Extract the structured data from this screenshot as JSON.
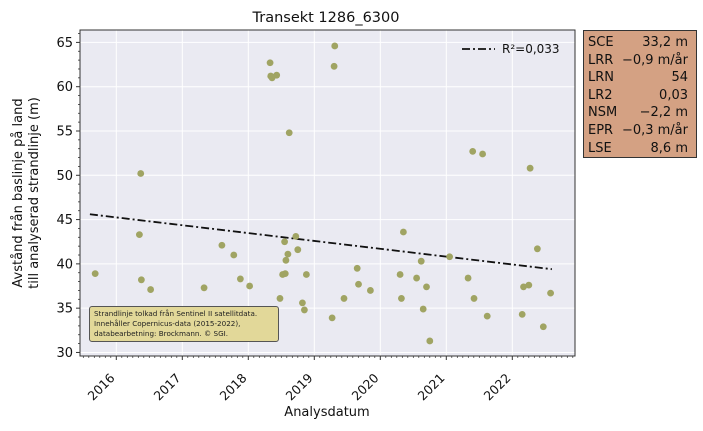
{
  "chart_data": {
    "type": "scatter",
    "title": "Transekt 1286_6300",
    "xlabel": "Analysdatum",
    "ylabel_lines": [
      "Avstånd från baslinje på land",
      "till analyserad strandlinje (m)"
    ],
    "xlim": [
      2015.45,
      2022.95
    ],
    "ylim": [
      29.6,
      66.4
    ],
    "x_ticks": [
      2016,
      2017,
      2018,
      2019,
      2020,
      2021,
      2022
    ],
    "x_tick_labels": [
      "2016",
      "2017",
      "2018",
      "2019",
      "2020",
      "2021",
      "2022"
    ],
    "y_ticks": [
      30,
      35,
      40,
      45,
      50,
      55,
      60,
      65
    ],
    "y_tick_labels": [
      "30",
      "35",
      "40",
      "45",
      "50",
      "55",
      "60",
      "65"
    ],
    "grid": true,
    "colors": {
      "points": "#a0a463",
      "trend": "#111111",
      "plot_bg": "#eaeaf2"
    },
    "series": [
      {
        "values": [
          [
            2015.68,
            38.9
          ],
          [
            2016.35,
            43.3
          ],
          [
            2016.37,
            50.2
          ],
          [
            2016.38,
            38.2
          ],
          [
            2016.52,
            37.1
          ],
          [
            2017.33,
            37.3
          ],
          [
            2017.6,
            42.1
          ],
          [
            2017.78,
            41.0
          ],
          [
            2017.88,
            38.3
          ],
          [
            2018.02,
            37.5
          ],
          [
            2018.33,
            62.7
          ],
          [
            2018.34,
            61.2
          ],
          [
            2018.36,
            61.0
          ],
          [
            2018.43,
            61.3
          ],
          [
            2018.48,
            36.1
          ],
          [
            2018.52,
            38.8
          ],
          [
            2018.55,
            42.5
          ],
          [
            2018.56,
            38.9
          ],
          [
            2018.57,
            40.4
          ],
          [
            2018.6,
            41.1
          ],
          [
            2018.62,
            54.8
          ],
          [
            2018.72,
            43.1
          ],
          [
            2018.75,
            41.6
          ],
          [
            2018.82,
            35.6
          ],
          [
            2018.85,
            34.8
          ],
          [
            2018.88,
            38.8
          ],
          [
            2019.27,
            33.9
          ],
          [
            2019.3,
            62.3
          ],
          [
            2019.31,
            64.6
          ],
          [
            2019.45,
            36.1
          ],
          [
            2019.65,
            39.5
          ],
          [
            2019.67,
            37.7
          ],
          [
            2019.85,
            37.0
          ],
          [
            2020.3,
            38.8
          ],
          [
            2020.32,
            36.1
          ],
          [
            2020.35,
            43.6
          ],
          [
            2020.55,
            38.4
          ],
          [
            2020.62,
            40.3
          ],
          [
            2020.65,
            34.9
          ],
          [
            2020.7,
            37.4
          ],
          [
            2020.75,
            31.3
          ],
          [
            2021.05,
            40.8
          ],
          [
            2021.33,
            38.4
          ],
          [
            2021.4,
            52.7
          ],
          [
            2021.42,
            36.1
          ],
          [
            2021.55,
            52.4
          ],
          [
            2021.62,
            34.1
          ],
          [
            2022.15,
            34.3
          ],
          [
            2022.17,
            37.4
          ],
          [
            2022.25,
            37.6
          ],
          [
            2022.27,
            50.8
          ],
          [
            2022.38,
            41.7
          ],
          [
            2022.47,
            32.9
          ],
          [
            2022.58,
            36.7
          ]
        ]
      }
    ],
    "trend_line": {
      "label": "R²=0,033",
      "x": [
        2015.6,
        2022.6
      ],
      "y": [
        45.6,
        39.4
      ]
    },
    "legend_position": "top-right"
  },
  "stats": [
    {
      "key": "SCE",
      "value": "33,2 m"
    },
    {
      "key": "LRR",
      "value": "−0,9 m/år"
    },
    {
      "key": "LRN",
      "value": "54"
    },
    {
      "key": "LR2",
      "value": "0,03"
    },
    {
      "key": "NSM",
      "value": "−2,2 m"
    },
    {
      "key": "EPR",
      "value": "−0,3 m/år"
    },
    {
      "key": "LSE",
      "value": "8,6 m"
    }
  ],
  "credit_lines": [
    "Strandlinje tolkad från Sentinel II satellitdata.",
    "Innehåller Copernicus-data (2015-2022),",
    "databearbetning: Brockmann. © SGI."
  ]
}
